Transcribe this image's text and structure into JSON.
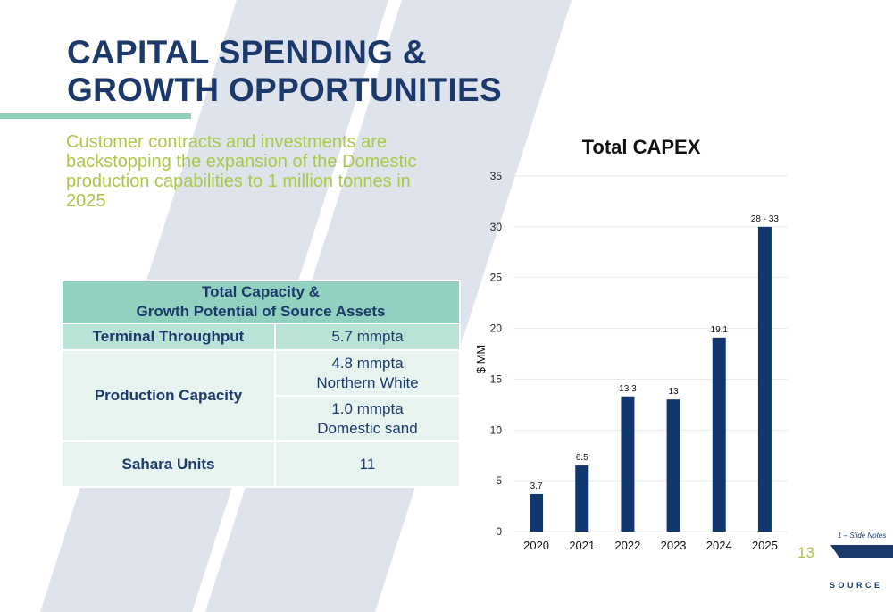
{
  "slide": {
    "title_line1": "CAPITAL SPENDING &",
    "title_line2": "GROWTH OPPORTUNITIES",
    "subtitle": "Customer contracts and investments are backstopping the expansion of the Domestic production capabilities to 1 million tonnes in 2025",
    "page_number": "13",
    "footnote": "1 – Slide Notes",
    "logo": "SOURCE"
  },
  "capacity_table": {
    "header_line1": "Total Capacity &",
    "header_line2": "Growth Potential of Source Assets",
    "terminal_label": "Terminal Throughput",
    "terminal_value": "5.7 mmpta",
    "production_label": "Production Capacity",
    "production_value1_line1": "4.8 mmpta",
    "production_value1_line2": "Northern White",
    "production_value2_line1": "1.0 mmpta",
    "production_value2_line2": "Domestic sand",
    "sahara_label": "Sahara Units",
    "sahara_value": "11"
  },
  "colors": {
    "title": "#1b3a6b",
    "accent_green": "#a9c846",
    "bar": "#12366e",
    "table_header": "#92d1c0"
  },
  "chart_data": {
    "type": "bar",
    "title": "Total CAPEX",
    "ylabel": "$ MM",
    "xlabel": "",
    "categories": [
      "2020",
      "2021",
      "2022",
      "2023",
      "2024",
      "2025"
    ],
    "values": [
      3.7,
      6.5,
      13.3,
      13,
      19.1,
      30
    ],
    "data_labels": [
      "3.7",
      "6.5",
      "13.3",
      "13",
      "19.1",
      "28 - 33"
    ],
    "ylim": [
      0,
      35
    ],
    "yticks": [
      0,
      5,
      10,
      15,
      20,
      25,
      30,
      35
    ],
    "grid": true
  }
}
